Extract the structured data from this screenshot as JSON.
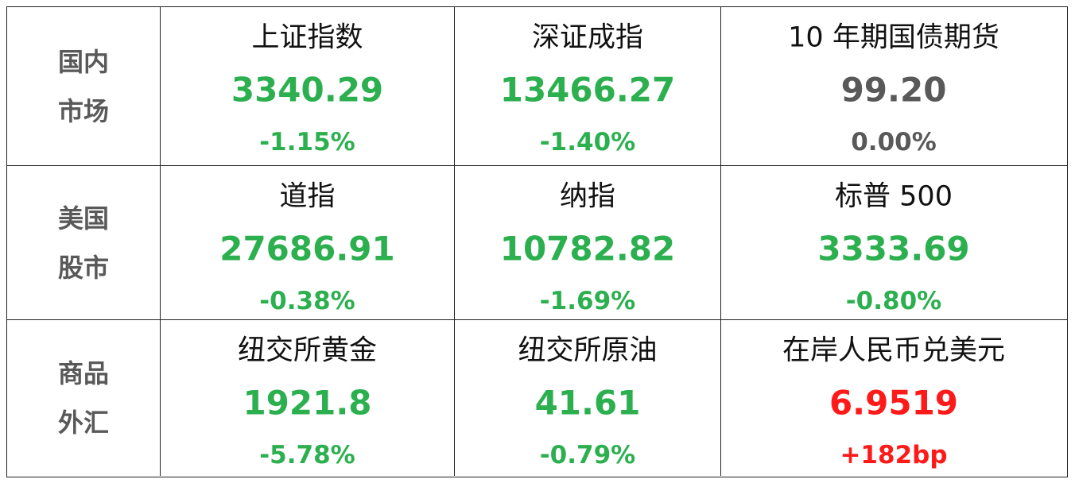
{
  "table": {
    "rows": [
      {
        "label": [
          "国内",
          "市场"
        ],
        "cells": [
          {
            "name": "上证指数",
            "value": "3340.29",
            "change": "-1.15%",
            "color": "#2cb04f"
          },
          {
            "name": "深证成指",
            "value": "13466.27",
            "change": "-1.40%",
            "color": "#2cb04f"
          },
          {
            "name": "10 年期国债期货",
            "value": "99.20",
            "change": "0.00%",
            "color": "#595959"
          }
        ]
      },
      {
        "label": [
          "美国",
          "股市"
        ],
        "cells": [
          {
            "name": "道指",
            "value": "27686.91",
            "change": "-0.38%",
            "color": "#2cb04f"
          },
          {
            "name": "纳指",
            "value": "10782.82",
            "change": "-1.69%",
            "color": "#2cb04f"
          },
          {
            "name": "标普 500",
            "value": "3333.69",
            "change": "-0.80%",
            "color": "#2cb04f"
          }
        ]
      },
      {
        "label": [
          "商品",
          "外汇"
        ],
        "cells": [
          {
            "name": "纽交所黄金",
            "value": "1921.8",
            "change": "-5.78%",
            "color": "#2cb04f"
          },
          {
            "name": "纽交所原油",
            "value": "41.61",
            "change": "-0.79%",
            "color": "#2cb04f"
          },
          {
            "name": "在岸人民币兑美元",
            "value": "6.9519",
            "change": "+182bp",
            "color": "#ff1a1a"
          }
        ]
      }
    ]
  }
}
